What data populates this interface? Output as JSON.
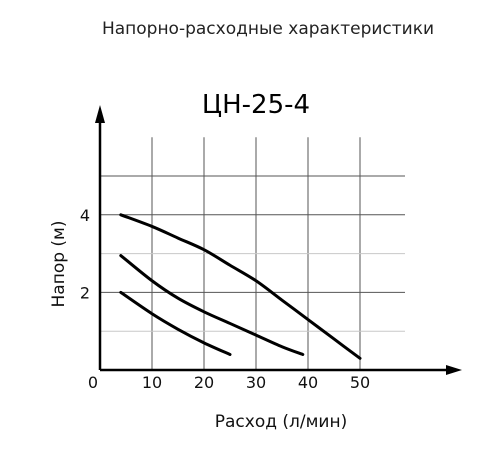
{
  "header": "Напорно-расходные характеристики",
  "chart_data": {
    "type": "line",
    "title": "ЦН-25-4",
    "xlabel": "Расход (л/мин)",
    "ylabel": "Напор (м)",
    "xlim": [
      0,
      60
    ],
    "ylim": [
      0,
      6
    ],
    "x_ticks": [
      0,
      10,
      20,
      30,
      40,
      50
    ],
    "x_tick_labels": [
      "0",
      "10",
      "20",
      "30",
      "40",
      "50"
    ],
    "y_ticks": [
      2,
      4
    ],
    "y_tick_labels": [
      "2",
      "4"
    ],
    "grid": true,
    "legend": "none",
    "series": [
      {
        "x": [
          4,
          10,
          15,
          20,
          25,
          30,
          35,
          40,
          45,
          50
        ],
        "y": [
          4.0,
          3.7,
          3.4,
          3.1,
          2.7,
          2.3,
          1.8,
          1.3,
          0.8,
          0.3
        ]
      },
      {
        "x": [
          4,
          10,
          15,
          20,
          25,
          30,
          35,
          39
        ],
        "y": [
          2.95,
          2.3,
          1.85,
          1.5,
          1.2,
          0.9,
          0.6,
          0.4
        ]
      },
      {
        "x": [
          4,
          10,
          15,
          20,
          25
        ],
        "y": [
          2.0,
          1.45,
          1.05,
          0.7,
          0.4
        ]
      }
    ]
  }
}
